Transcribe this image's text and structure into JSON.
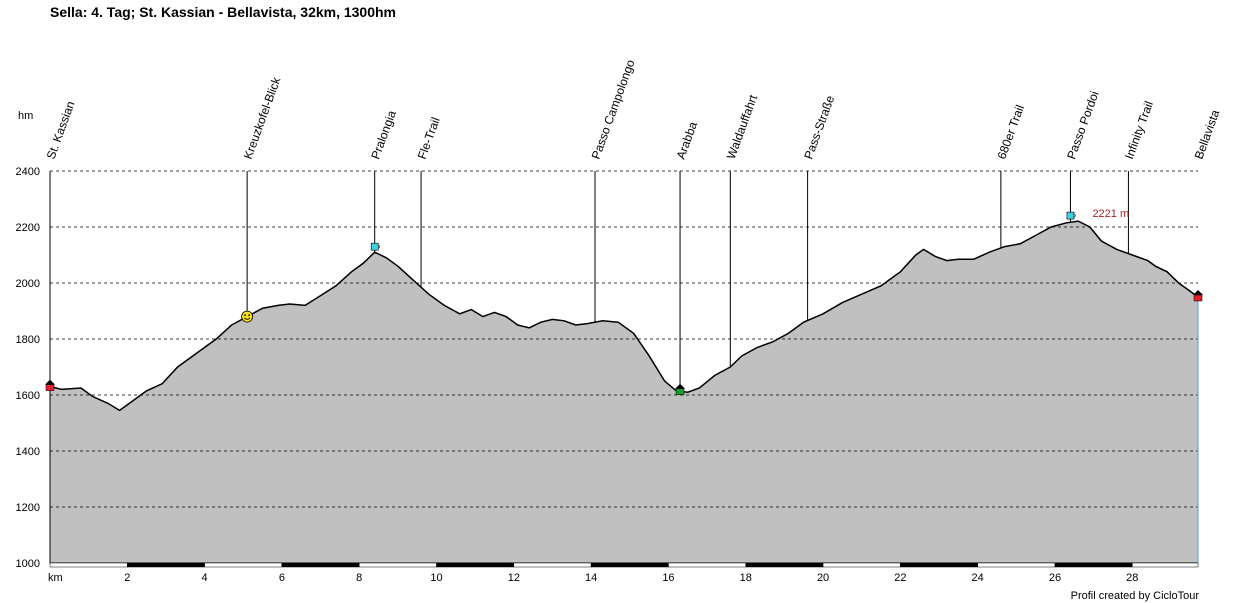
{
  "header": {
    "title": "Sella: 4. Tag; St. Kassian - Bellavista, 32km, 1300hm"
  },
  "footer": {
    "credit": "Profil created by CicloTour"
  },
  "chart_data": {
    "type": "area",
    "title": "Sella: 4. Tag; St. Kassian - Bellavista, 32km, 1300hm",
    "xlabel": "km",
    "ylabel": "hm",
    "xlim": [
      0,
      29.7
    ],
    "ylim": [
      1000,
      2400
    ],
    "x_ticks": [
      2,
      4,
      6,
      8,
      10,
      12,
      14,
      16,
      18,
      20,
      22,
      24,
      26,
      28
    ],
    "y_ticks": [
      1000,
      1200,
      1400,
      1600,
      1800,
      2000,
      2200,
      2400
    ],
    "grid": "horizontal dashed",
    "fill_color": "#c0c0c0",
    "line_color": "#000000",
    "x": [
      0,
      0.3,
      0.8,
      1.1,
      1.5,
      1.8,
      2.1,
      2.5,
      2.9,
      3.3,
      3.8,
      4.3,
      4.7,
      5.1,
      5.5,
      5.9,
      6.2,
      6.6,
      7.0,
      7.4,
      7.8,
      8.1,
      8.4,
      8.7,
      9.0,
      9.4,
      9.8,
      10.2,
      10.6,
      10.9,
      11.2,
      11.5,
      11.8,
      12.1,
      12.4,
      12.7,
      13.0,
      13.3,
      13.6,
      13.9,
      14.3,
      14.7,
      15.1,
      15.5,
      15.9,
      16.2,
      16.5,
      16.8,
      17.2,
      17.6,
      17.9,
      18.3,
      18.7,
      19.1,
      19.5,
      20.0,
      20.5,
      21.0,
      21.5,
      22.0,
      22.4,
      22.6,
      22.9,
      23.2,
      23.5,
      23.9,
      24.3,
      24.7,
      25.1,
      25.5,
      25.9,
      26.3,
      26.6,
      26.9,
      27.2,
      27.6,
      28.0,
      28.4,
      28.6,
      28.9,
      29.2,
      29.5,
      29.7
    ],
    "y": [
      1630,
      1620,
      1625,
      1595,
      1570,
      1545,
      1575,
      1615,
      1640,
      1700,
      1750,
      1800,
      1850,
      1880,
      1910,
      1920,
      1925,
      1920,
      1955,
      1990,
      2040,
      2070,
      2110,
      2090,
      2060,
      2010,
      1960,
      1920,
      1890,
      1905,
      1880,
      1895,
      1880,
      1850,
      1840,
      1860,
      1870,
      1865,
      1850,
      1855,
      1865,
      1860,
      1820,
      1740,
      1650,
      1615,
      1610,
      1625,
      1670,
      1700,
      1740,
      1770,
      1790,
      1820,
      1860,
      1890,
      1930,
      1960,
      1990,
      2040,
      2100,
      2120,
      2095,
      2080,
      2085,
      2085,
      2110,
      2130,
      2140,
      2170,
      2200,
      2215,
      2221,
      2200,
      2150,
      2120,
      2100,
      2080,
      2060,
      2040,
      2000,
      1970,
      1950
    ],
    "waypoints": [
      {
        "label": "St. Kassian",
        "km": 0
      },
      {
        "label": "Kreuzkofel-Blick",
        "km": 5.1
      },
      {
        "label": "Pralongia",
        "km": 8.4
      },
      {
        "label": "Fle-Trail",
        "km": 9.6
      },
      {
        "label": "Passo Campolongo",
        "km": 14.1
      },
      {
        "label": "Arabba",
        "km": 16.3
      },
      {
        "label": "Waldauffahrt",
        "km": 17.6
      },
      {
        "label": "Pass-Straße",
        "km": 19.6
      },
      {
        "label": "680er Trail",
        "km": 24.6
      },
      {
        "label": "Passo Pordoi",
        "km": 26.4
      },
      {
        "label": "Infinity Trail",
        "km": 27.9
      },
      {
        "label": "Bellavista",
        "km": 29.7
      }
    ],
    "annotations": [
      {
        "text": "2221 m",
        "km": 26.4,
        "elevation": 2221
      }
    ],
    "markers": [
      {
        "type": "start-house",
        "km": 0,
        "elevation": 1630
      },
      {
        "type": "smiley",
        "km": 5.1,
        "elevation": 1880
      },
      {
        "type": "cup",
        "km": 8.4,
        "elevation": 2110
      },
      {
        "type": "green-house",
        "km": 16.3,
        "elevation": 1615
      },
      {
        "type": "cup",
        "km": 26.4,
        "elevation": 2221
      },
      {
        "type": "end-house",
        "km": 29.7,
        "elevation": 1950
      }
    ]
  }
}
